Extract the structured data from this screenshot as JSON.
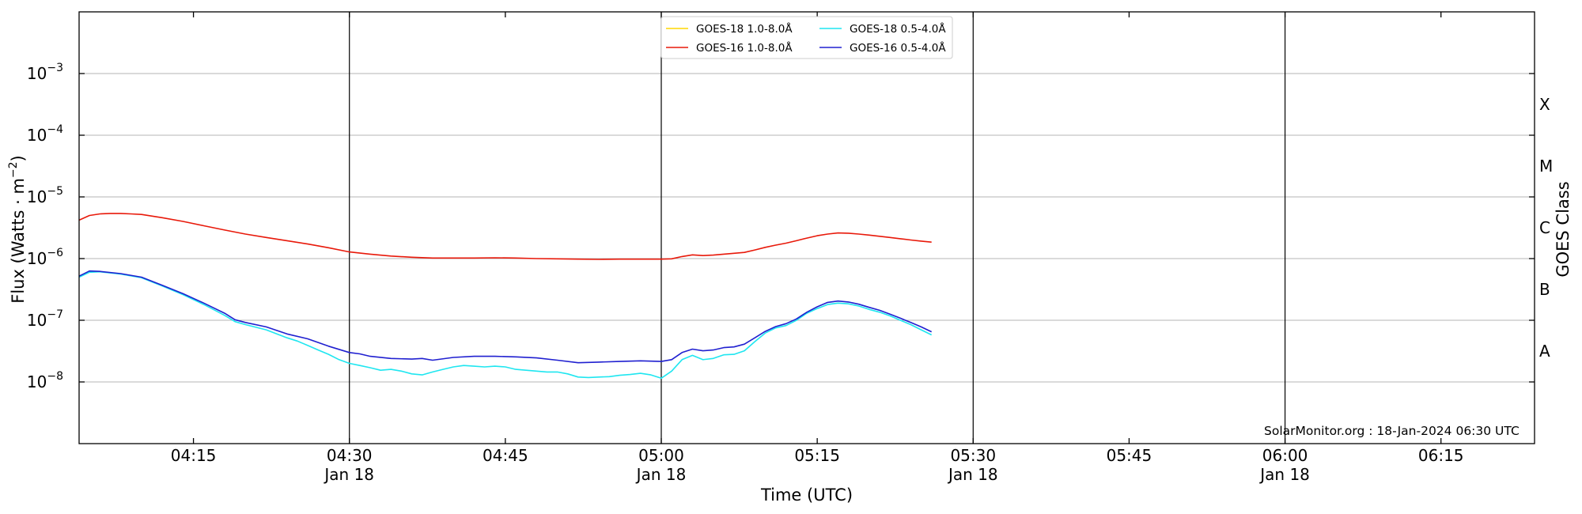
{
  "chart_data": {
    "type": "line",
    "xlabel": "Time (UTC)",
    "ylabel_main": "Flux (Watts · m",
    "ylabel_sup": "−2",
    "ylabel_end": ")",
    "y2label": "GOES Class",
    "yscale": "log",
    "ylim": [
      1e-09,
      0.01
    ],
    "xlim": [
      "04:04",
      "06:24"
    ],
    "x_ticks": [
      {
        "t": "04:15",
        "label": "04:15",
        "date": ""
      },
      {
        "t": "04:30",
        "label": "04:30",
        "date": "Jan 18"
      },
      {
        "t": "04:45",
        "label": "04:45",
        "date": ""
      },
      {
        "t": "05:00",
        "label": "05:00",
        "date": "Jan 18"
      },
      {
        "t": "05:15",
        "label": "05:15",
        "date": ""
      },
      {
        "t": "05:30",
        "label": "05:30",
        "date": "Jan 18"
      },
      {
        "t": "05:45",
        "label": "05:45",
        "date": ""
      },
      {
        "t": "06:00",
        "label": "06:00",
        "date": "Jan 18"
      },
      {
        "t": "06:15",
        "label": "06:15",
        "date": ""
      }
    ],
    "y_ticks": [
      {
        "exp": -3,
        "label": "10",
        "sup": "−3"
      },
      {
        "exp": -4,
        "label": "10",
        "sup": "−4"
      },
      {
        "exp": -5,
        "label": "10",
        "sup": "−5"
      },
      {
        "exp": -6,
        "label": "10",
        "sup": "−6"
      },
      {
        "exp": -7,
        "label": "10",
        "sup": "−7"
      },
      {
        "exp": -8,
        "label": "10",
        "sup": "−8"
      }
    ],
    "goes_classes": [
      {
        "label": "X",
        "value": 0.0001
      },
      {
        "label": "M",
        "value": 1e-05
      },
      {
        "label": "C",
        "value": 1e-06
      },
      {
        "label": "B",
        "value": 1e-07
      },
      {
        "label": "A",
        "value": 1e-08
      }
    ],
    "legend_position": "top-center",
    "grid": "horizontal",
    "credit": "SolarMonitor.org : 18-Jan-2024 06:30 UTC",
    "series": [
      {
        "name": "GOES-18 1.0-8.0Å",
        "color": "#ffd700",
        "points": []
      },
      {
        "name": "GOES-16 1.0-8.0Å",
        "color": "#e8190a",
        "points": [
          [
            "04:04",
            4.2e-06
          ],
          [
            "04:05",
            5e-06
          ],
          [
            "04:06",
            5.3e-06
          ],
          [
            "04:07",
            5.4e-06
          ],
          [
            "04:08",
            5.4e-06
          ],
          [
            "04:09",
            5.3e-06
          ],
          [
            "04:10",
            5.2e-06
          ],
          [
            "04:12",
            4.6e-06
          ],
          [
            "04:14",
            4e-06
          ],
          [
            "04:16",
            3.4e-06
          ],
          [
            "04:18",
            2.9e-06
          ],
          [
            "04:20",
            2.5e-06
          ],
          [
            "04:22",
            2.2e-06
          ],
          [
            "04:24",
            1.95e-06
          ],
          [
            "04:26",
            1.72e-06
          ],
          [
            "04:28",
            1.5e-06
          ],
          [
            "04:30",
            1.28e-06
          ],
          [
            "04:32",
            1.18e-06
          ],
          [
            "04:34",
            1.1e-06
          ],
          [
            "04:36",
            1.05e-06
          ],
          [
            "04:38",
            1.02e-06
          ],
          [
            "04:40",
            1.02e-06
          ],
          [
            "04:42",
            1.02e-06
          ],
          [
            "04:44",
            1.03e-06
          ],
          [
            "04:46",
            1.02e-06
          ],
          [
            "04:48",
            1e-06
          ],
          [
            "04:50",
            9.9e-07
          ],
          [
            "04:52",
            9.8e-07
          ],
          [
            "04:54",
            9.7e-07
          ],
          [
            "04:56",
            9.8e-07
          ],
          [
            "04:58",
            9.8e-07
          ],
          [
            "05:00",
            9.8e-07
          ],
          [
            "05:01",
            9.9e-07
          ],
          [
            "05:02",
            1.08e-06
          ],
          [
            "05:03",
            1.15e-06
          ],
          [
            "05:04",
            1.12e-06
          ],
          [
            "05:05",
            1.14e-06
          ],
          [
            "05:06",
            1.18e-06
          ],
          [
            "05:07",
            1.22e-06
          ],
          [
            "05:08",
            1.26e-06
          ],
          [
            "05:09",
            1.38e-06
          ],
          [
            "05:10",
            1.52e-06
          ],
          [
            "05:11",
            1.65e-06
          ],
          [
            "05:12",
            1.78e-06
          ],
          [
            "05:13",
            1.95e-06
          ],
          [
            "05:14",
            2.15e-06
          ],
          [
            "05:15",
            2.35e-06
          ],
          [
            "05:16",
            2.5e-06
          ],
          [
            "05:17",
            2.6e-06
          ],
          [
            "05:18",
            2.58e-06
          ],
          [
            "05:19",
            2.5e-06
          ],
          [
            "05:20",
            2.4e-06
          ],
          [
            "05:21",
            2.3e-06
          ],
          [
            "05:22",
            2.2e-06
          ],
          [
            "05:23",
            2.1e-06
          ],
          [
            "05:24",
            2e-06
          ],
          [
            "05:25",
            1.92e-06
          ],
          [
            "05:26",
            1.85e-06
          ]
        ]
      },
      {
        "name": "GOES-18 0.5-4.0Å",
        "color": "#1fe6f0",
        "points": [
          [
            "04:04",
            5e-07
          ],
          [
            "04:05",
            6e-07
          ],
          [
            "04:06",
            6.1e-07
          ],
          [
            "04:08",
            5.6e-07
          ],
          [
            "04:10",
            4.9e-07
          ],
          [
            "04:12",
            3.6e-07
          ],
          [
            "04:14",
            2.6e-07
          ],
          [
            "04:16",
            1.8e-07
          ],
          [
            "04:18",
            1.2e-07
          ],
          [
            "04:19",
            9.5e-08
          ],
          [
            "04:20",
            8.5e-08
          ],
          [
            "04:22",
            7e-08
          ],
          [
            "04:24",
            5.2e-08
          ],
          [
            "04:25",
            4.6e-08
          ],
          [
            "04:26",
            3.9e-08
          ],
          [
            "04:27",
            3.3e-08
          ],
          [
            "04:28",
            2.8e-08
          ],
          [
            "04:29",
            2.3e-08
          ],
          [
            "04:30",
            2e-08
          ],
          [
            "04:31",
            1.85e-08
          ],
          [
            "04:32",
            1.7e-08
          ],
          [
            "04:33",
            1.55e-08
          ],
          [
            "04:34",
            1.6e-08
          ],
          [
            "04:35",
            1.5e-08
          ],
          [
            "04:36",
            1.35e-08
          ],
          [
            "04:37",
            1.3e-08
          ],
          [
            "04:38",
            1.45e-08
          ],
          [
            "04:39",
            1.6e-08
          ],
          [
            "04:40",
            1.75e-08
          ],
          [
            "04:41",
            1.85e-08
          ],
          [
            "04:42",
            1.8e-08
          ],
          [
            "04:43",
            1.75e-08
          ],
          [
            "04:44",
            1.8e-08
          ],
          [
            "04:45",
            1.75e-08
          ],
          [
            "04:46",
            1.6e-08
          ],
          [
            "04:47",
            1.55e-08
          ],
          [
            "04:48",
            1.5e-08
          ],
          [
            "04:49",
            1.45e-08
          ],
          [
            "04:50",
            1.45e-08
          ],
          [
            "04:51",
            1.35e-08
          ],
          [
            "04:52",
            1.2e-08
          ],
          [
            "04:53",
            1.18e-08
          ],
          [
            "04:54",
            1.2e-08
          ],
          [
            "04:55",
            1.22e-08
          ],
          [
            "04:56",
            1.28e-08
          ],
          [
            "04:57",
            1.32e-08
          ],
          [
            "04:58",
            1.38e-08
          ],
          [
            "04:59",
            1.3e-08
          ],
          [
            "05:00",
            1.15e-08
          ],
          [
            "05:01",
            1.5e-08
          ],
          [
            "05:02",
            2.3e-08
          ],
          [
            "05:03",
            2.7e-08
          ],
          [
            "05:04",
            2.3e-08
          ],
          [
            "05:05",
            2.4e-08
          ],
          [
            "05:06",
            2.75e-08
          ],
          [
            "05:07",
            2.8e-08
          ],
          [
            "05:08",
            3.2e-08
          ],
          [
            "05:09",
            4.5e-08
          ],
          [
            "05:10",
            6.2e-08
          ],
          [
            "05:11",
            7.5e-08
          ],
          [
            "05:12",
            8.2e-08
          ],
          [
            "05:13",
            1e-07
          ],
          [
            "05:14",
            1.3e-07
          ],
          [
            "05:15",
            1.55e-07
          ],
          [
            "05:16",
            1.8e-07
          ],
          [
            "05:17",
            1.9e-07
          ],
          [
            "05:18",
            1.85e-07
          ],
          [
            "05:19",
            1.7e-07
          ],
          [
            "05:20",
            1.5e-07
          ],
          [
            "05:21",
            1.35e-07
          ],
          [
            "05:22",
            1.18e-07
          ],
          [
            "05:23",
            1e-07
          ],
          [
            "05:24",
            8.5e-08
          ],
          [
            "05:25",
            7e-08
          ],
          [
            "05:26",
            5.8e-08
          ]
        ]
      },
      {
        "name": "GOES-16 0.5-4.0Å",
        "color": "#2020d0",
        "points": [
          [
            "04:04",
            5.2e-07
          ],
          [
            "04:05",
            6.3e-07
          ],
          [
            "04:06",
            6.2e-07
          ],
          [
            "04:08",
            5.7e-07
          ],
          [
            "04:10",
            5e-07
          ],
          [
            "04:12",
            3.7e-07
          ],
          [
            "04:14",
            2.7e-07
          ],
          [
            "04:16",
            1.9e-07
          ],
          [
            "04:18",
            1.3e-07
          ],
          [
            "04:19",
            1.02e-07
          ],
          [
            "04:20",
            9.2e-08
          ],
          [
            "04:22",
            7.8e-08
          ],
          [
            "04:24",
            6e-08
          ],
          [
            "04:26",
            5e-08
          ],
          [
            "04:28",
            3.8e-08
          ],
          [
            "04:30",
            3e-08
          ],
          [
            "04:31",
            2.85e-08
          ],
          [
            "04:32",
            2.6e-08
          ],
          [
            "04:34",
            2.4e-08
          ],
          [
            "04:36",
            2.35e-08
          ],
          [
            "04:37",
            2.4e-08
          ],
          [
            "04:38",
            2.25e-08
          ],
          [
            "04:40",
            2.5e-08
          ],
          [
            "04:42",
            2.6e-08
          ],
          [
            "04:44",
            2.6e-08
          ],
          [
            "04:46",
            2.55e-08
          ],
          [
            "04:48",
            2.45e-08
          ],
          [
            "04:50",
            2.25e-08
          ],
          [
            "04:52",
            2.05e-08
          ],
          [
            "04:54",
            2.1e-08
          ],
          [
            "04:56",
            2.15e-08
          ],
          [
            "04:58",
            2.2e-08
          ],
          [
            "05:00",
            2.15e-08
          ],
          [
            "05:01",
            2.3e-08
          ],
          [
            "05:02",
            3e-08
          ],
          [
            "05:03",
            3.4e-08
          ],
          [
            "05:04",
            3.2e-08
          ],
          [
            "05:05",
            3.3e-08
          ],
          [
            "05:06",
            3.6e-08
          ],
          [
            "05:07",
            3.7e-08
          ],
          [
            "05:08",
            4.1e-08
          ],
          [
            "05:09",
            5.2e-08
          ],
          [
            "05:10",
            6.6e-08
          ],
          [
            "05:11",
            7.9e-08
          ],
          [
            "05:12",
            8.8e-08
          ],
          [
            "05:13",
            1.05e-07
          ],
          [
            "05:14",
            1.35e-07
          ],
          [
            "05:15",
            1.65e-07
          ],
          [
            "05:16",
            1.95e-07
          ],
          [
            "05:17",
            2.05e-07
          ],
          [
            "05:18",
            1.98e-07
          ],
          [
            "05:19",
            1.82e-07
          ],
          [
            "05:20",
            1.62e-07
          ],
          [
            "05:21",
            1.45e-07
          ],
          [
            "05:22",
            1.26e-07
          ],
          [
            "05:23",
            1.08e-07
          ],
          [
            "05:24",
            9.2e-08
          ],
          [
            "05:25",
            7.8e-08
          ],
          [
            "05:26",
            6.5e-08
          ]
        ]
      }
    ]
  }
}
